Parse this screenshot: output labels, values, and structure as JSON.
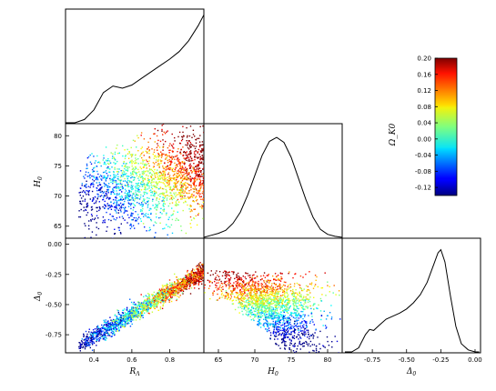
{
  "chart_data": [
    {
      "type": "line",
      "panel": "marginal-R-Lambda",
      "x": [
        0.25,
        0.3,
        0.35,
        0.4,
        0.45,
        0.5,
        0.55,
        0.6,
        0.65,
        0.7,
        0.75,
        0.8,
        0.85,
        0.9,
        0.95,
        0.98
      ],
      "y": [
        0.0,
        0.0,
        0.03,
        0.12,
        0.28,
        0.34,
        0.32,
        0.35,
        0.41,
        0.47,
        0.53,
        0.59,
        0.66,
        0.76,
        0.9,
        1.0
      ],
      "xlim": [
        0.25,
        0.98
      ]
    },
    {
      "type": "line",
      "panel": "marginal-H0",
      "x": [
        63,
        64,
        65,
        66,
        67,
        68,
        69,
        70,
        71,
        72,
        73,
        74,
        75,
        76,
        77,
        78,
        79,
        80,
        81,
        82
      ],
      "y": [
        0.0,
        0.02,
        0.04,
        0.07,
        0.14,
        0.25,
        0.42,
        0.62,
        0.82,
        0.96,
        1.0,
        0.95,
        0.8,
        0.59,
        0.38,
        0.2,
        0.08,
        0.03,
        0.01,
        0.0
      ],
      "xlim": [
        63,
        82
      ]
    },
    {
      "type": "line",
      "panel": "marginal-Delta0",
      "x": [
        -0.95,
        -0.9,
        -0.85,
        -0.8,
        -0.77,
        -0.74,
        -0.7,
        -0.65,
        -0.6,
        -0.55,
        -0.5,
        -0.45,
        -0.4,
        -0.35,
        -0.3,
        -0.27,
        -0.25,
        -0.22,
        -0.18,
        -0.14,
        -0.1,
        -0.05,
        0.0,
        0.03
      ],
      "y": [
        0.0,
        0.0,
        0.04,
        0.17,
        0.22,
        0.21,
        0.26,
        0.32,
        0.35,
        0.38,
        0.42,
        0.48,
        0.56,
        0.68,
        0.86,
        0.97,
        1.0,
        0.88,
        0.55,
        0.25,
        0.08,
        0.02,
        0.0,
        0.0
      ],
      "xlim": [
        -0.97,
        0.04
      ]
    },
    {
      "type": "scatter",
      "panel": "H0-vs-R-Lambda",
      "x_variable": "R_Lambda",
      "y_variable": "H_0",
      "color_variable": "Omega_K0",
      "points": [
        [
          0.33,
          71.3,
          -0.12
        ],
        [
          0.4,
          70.0,
          -0.11
        ],
        [
          0.45,
          72.6,
          -0.09
        ],
        [
          0.52,
          71.0,
          -0.07
        ],
        [
          0.6,
          74.8,
          -0.02
        ],
        [
          0.68,
          72.9,
          0.02
        ],
        [
          0.75,
          76.7,
          0.07
        ],
        [
          0.82,
          74.0,
          0.1
        ],
        [
          0.9,
          77.9,
          0.15
        ],
        [
          0.96,
          75.0,
          0.19
        ]
      ],
      "n_points": 1900,
      "xlim": [
        0.25,
        0.98
      ],
      "ylim": [
        63,
        82
      ]
    },
    {
      "type": "scatter",
      "panel": "Delta0-vs-R-Lambda",
      "x_variable": "R_Lambda",
      "y_variable": "Delta_0",
      "color_variable": "Omega_K0",
      "points": [
        [
          0.35,
          -0.82,
          -0.13
        ],
        [
          0.42,
          -0.76,
          -0.11
        ],
        [
          0.5,
          -0.66,
          -0.08
        ],
        [
          0.58,
          -0.58,
          -0.04
        ],
        [
          0.66,
          -0.51,
          0.0
        ],
        [
          0.74,
          -0.43,
          0.04
        ],
        [
          0.82,
          -0.35,
          0.09
        ],
        [
          0.9,
          -0.28,
          0.15
        ],
        [
          0.96,
          -0.24,
          0.19
        ]
      ],
      "n_points": 1900,
      "xlim": [
        0.25,
        0.98
      ],
      "ylim": [
        -0.9,
        0.05
      ]
    },
    {
      "type": "scatter",
      "panel": "Delta0-vs-H0",
      "x_variable": "H_0",
      "y_variable": "Delta_0",
      "color_variable": "Omega_K0",
      "points": [
        [
          67,
          -0.2,
          0.05
        ],
        [
          70,
          -0.3,
          0.03
        ],
        [
          72,
          -0.45,
          0.0
        ],
        [
          74,
          -0.6,
          -0.03
        ],
        [
          76,
          -0.72,
          -0.07
        ],
        [
          78,
          -0.8,
          -0.1
        ],
        [
          75,
          -0.28,
          0.14
        ],
        [
          78,
          -0.33,
          0.18
        ]
      ],
      "n_points": 1900,
      "xlim": [
        63,
        82
      ],
      "ylim": [
        -0.9,
        0.05
      ]
    }
  ],
  "colorbar": {
    "label": "Ω_K0",
    "min": -0.14,
    "max": 0.2,
    "ticks": [
      "0.20",
      "0.16",
      "0.12",
      "0.08",
      "0.04",
      "0.00",
      "-0.04",
      "-0.08",
      "-0.12"
    ],
    "colormap": "jet"
  },
  "axes": {
    "r_lambda_label": "R",
    "r_lambda_sub": "Λ",
    "h0_label": "H",
    "h0_sub": "0",
    "delta_label": "Δ",
    "delta_sub": "0",
    "r_lambda_ticks": [
      "0.4",
      "0.6",
      "0.8"
    ],
    "h0_ticks": [
      "65",
      "70",
      "75",
      "80"
    ],
    "delta_ticks": [
      "-0.75",
      "-0.50",
      "-0.25",
      "0.00"
    ]
  }
}
